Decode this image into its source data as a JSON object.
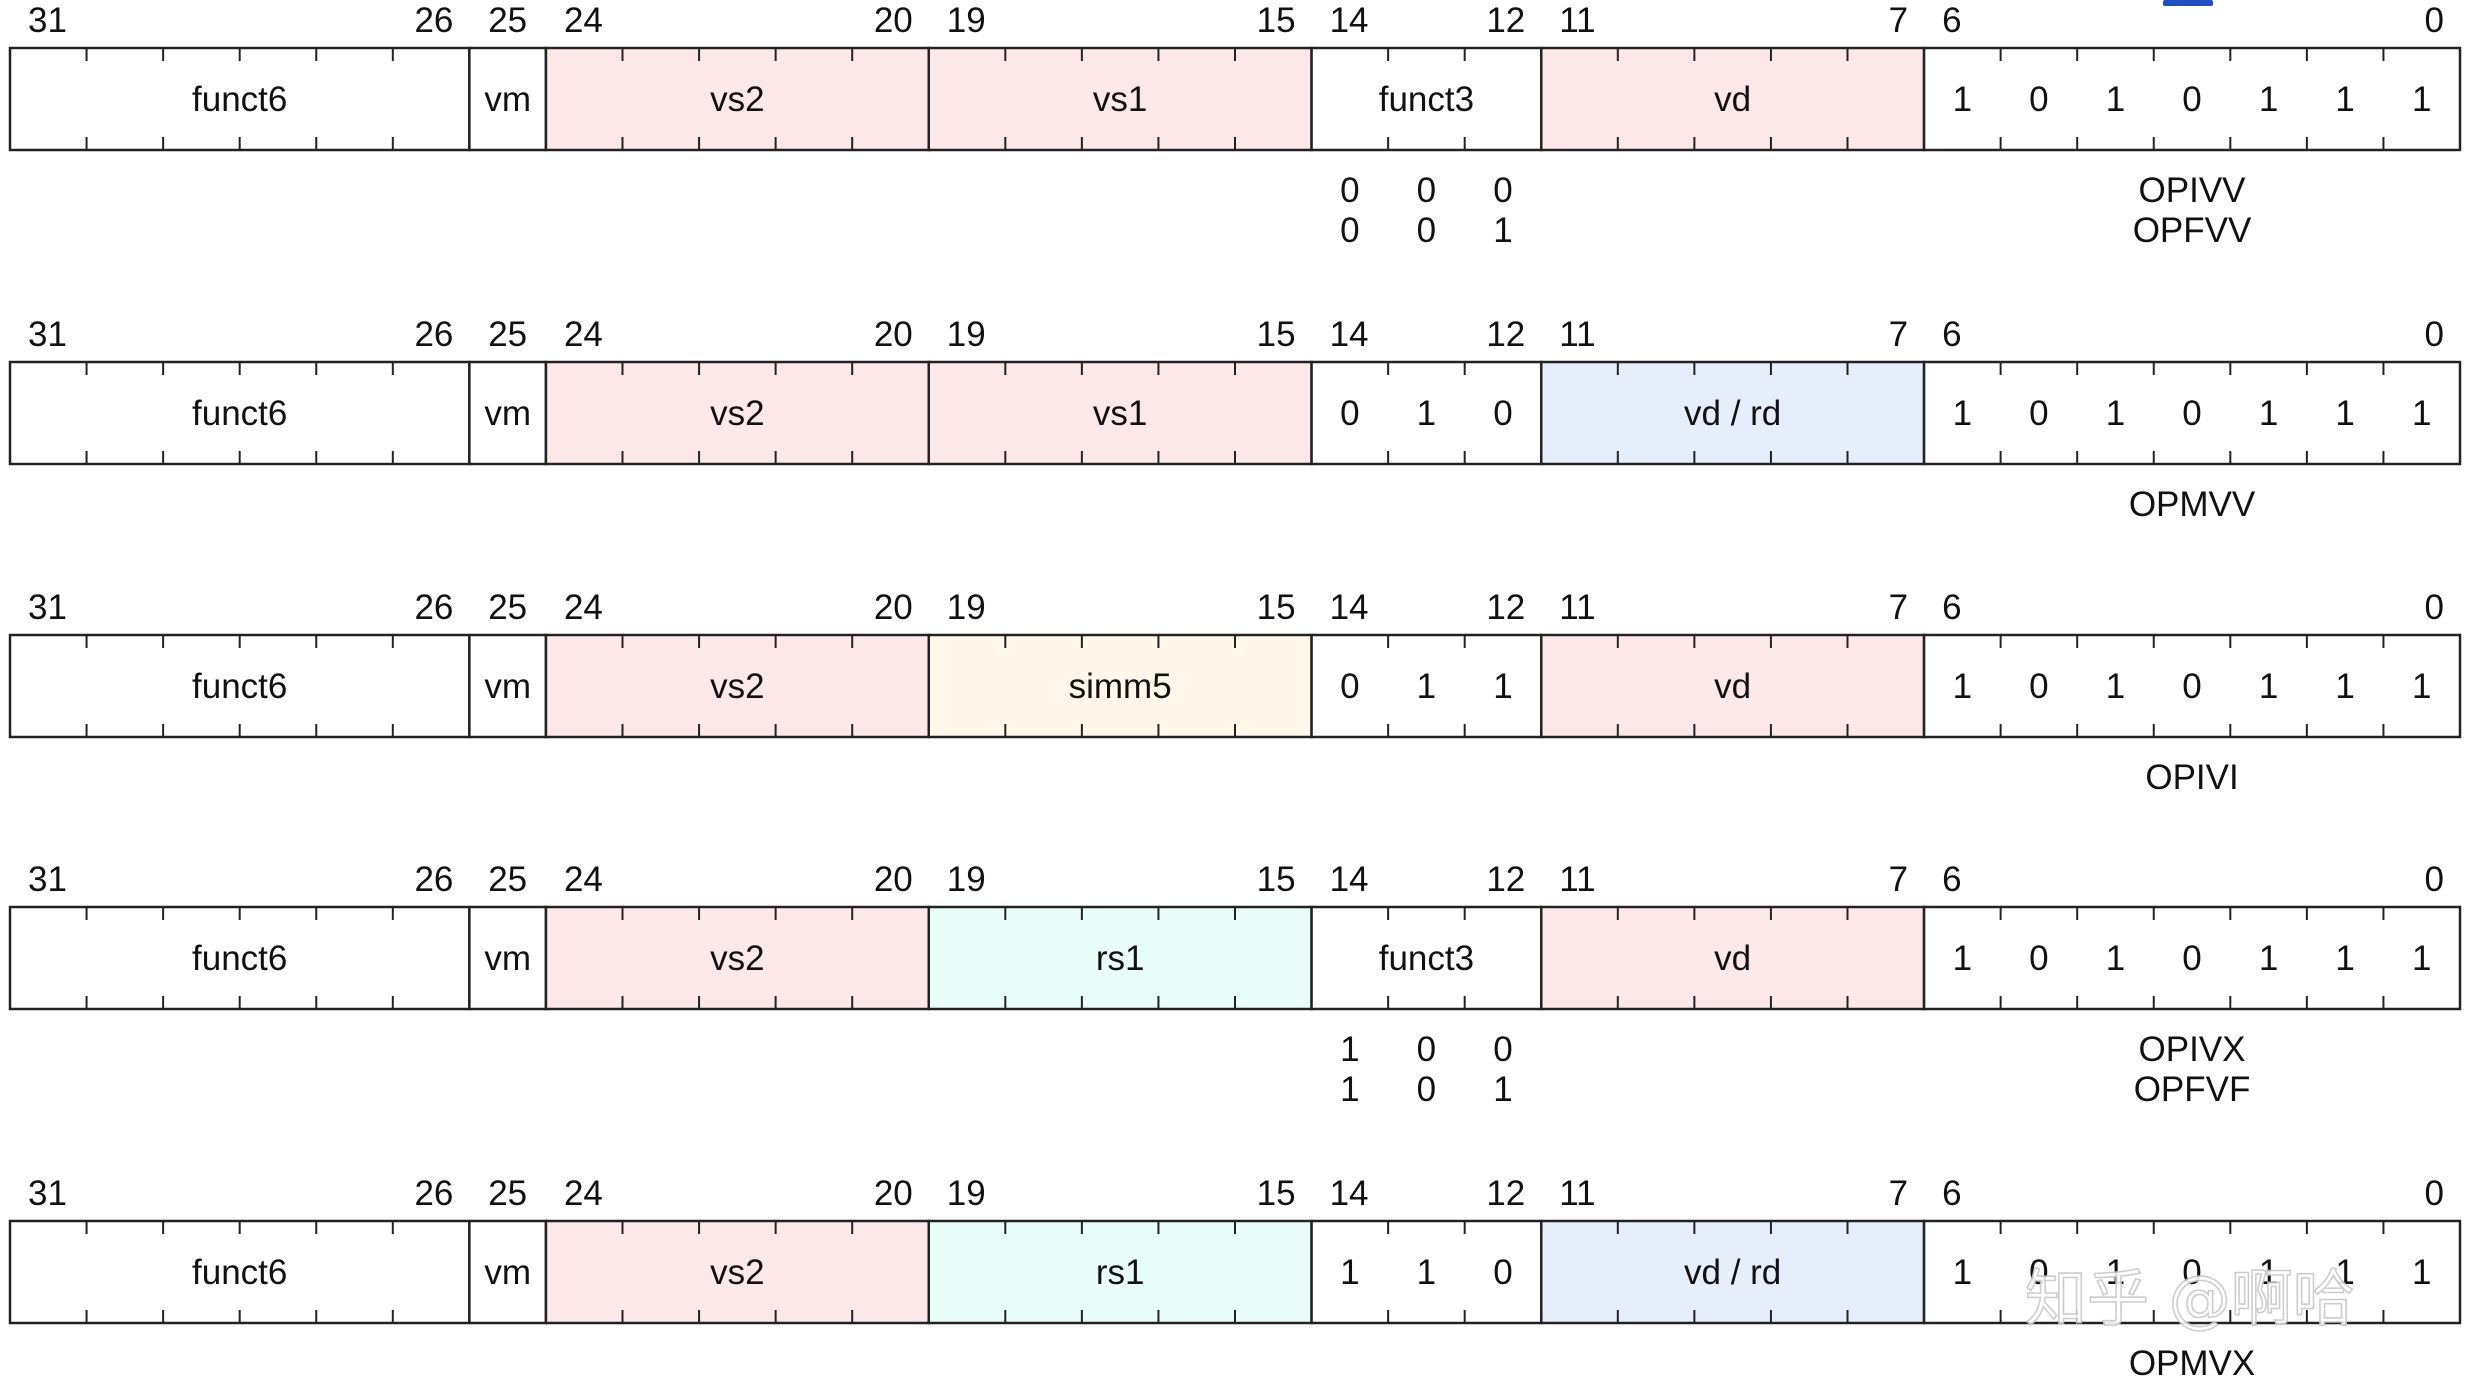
{
  "colors": {
    "vector_reg": "#fce8e8",
    "scalar_dest": "#e6eefc",
    "immediate": "#fef7ea",
    "scalar_src": "#e8fcf8",
    "plain": "#ffffff",
    "line": "#222222",
    "logo": "#1f4fc0"
  },
  "bit_positions": [
    "31",
    "26",
    "25",
    "24",
    "20",
    "19",
    "15",
    "14",
    "12",
    "11",
    "7",
    "6",
    "0"
  ],
  "formats": [
    {
      "fields": [
        {
          "label": "funct6",
          "kind": "plain"
        },
        {
          "label": "vm",
          "kind": "plain"
        },
        {
          "label": "vs2",
          "kind": "vector_reg"
        },
        {
          "label": "vs1",
          "kind": "vector_reg"
        },
        {
          "label": "funct3",
          "kind": "plain"
        },
        {
          "label": "vd",
          "kind": "vector_reg"
        }
      ],
      "opcode_bits": [
        "1",
        "0",
        "1",
        "0",
        "1",
        "1",
        "1"
      ],
      "funct3_rows": [
        [
          "0",
          "0",
          "0"
        ],
        [
          "0",
          "0",
          "1"
        ]
      ],
      "categories": [
        "OPIVV",
        "OPFVV"
      ]
    },
    {
      "fields": [
        {
          "label": "funct6",
          "kind": "plain"
        },
        {
          "label": "vm",
          "kind": "plain"
        },
        {
          "label": "vs2",
          "kind": "vector_reg"
        },
        {
          "label": "vs1",
          "kind": "vector_reg"
        },
        {
          "bits": [
            "0",
            "1",
            "0"
          ],
          "kind": "plain"
        },
        {
          "label": "vd / rd",
          "kind": "scalar_dest"
        }
      ],
      "opcode_bits": [
        "1",
        "0",
        "1",
        "0",
        "1",
        "1",
        "1"
      ],
      "funct3_rows": [],
      "categories": [
        "OPMVV"
      ]
    },
    {
      "fields": [
        {
          "label": "funct6",
          "kind": "plain"
        },
        {
          "label": "vm",
          "kind": "plain"
        },
        {
          "label": "vs2",
          "kind": "vector_reg"
        },
        {
          "label": "simm5",
          "kind": "immediate"
        },
        {
          "bits": [
            "0",
            "1",
            "1"
          ],
          "kind": "plain"
        },
        {
          "label": "vd",
          "kind": "vector_reg"
        }
      ],
      "opcode_bits": [
        "1",
        "0",
        "1",
        "0",
        "1",
        "1",
        "1"
      ],
      "funct3_rows": [],
      "categories": [
        "OPIVI"
      ]
    },
    {
      "fields": [
        {
          "label": "funct6",
          "kind": "plain"
        },
        {
          "label": "vm",
          "kind": "plain"
        },
        {
          "label": "vs2",
          "kind": "vector_reg"
        },
        {
          "label": "rs1",
          "kind": "scalar_src"
        },
        {
          "label": "funct3",
          "kind": "plain"
        },
        {
          "label": "vd",
          "kind": "vector_reg"
        }
      ],
      "opcode_bits": [
        "1",
        "0",
        "1",
        "0",
        "1",
        "1",
        "1"
      ],
      "funct3_rows": [
        [
          "1",
          "0",
          "0"
        ],
        [
          "1",
          "0",
          "1"
        ]
      ],
      "categories": [
        "OPIVX",
        "OPFVF"
      ]
    },
    {
      "fields": [
        {
          "label": "funct6",
          "kind": "plain"
        },
        {
          "label": "vm",
          "kind": "plain"
        },
        {
          "label": "vs2",
          "kind": "vector_reg"
        },
        {
          "label": "rs1",
          "kind": "scalar_src"
        },
        {
          "bits": [
            "1",
            "1",
            "0"
          ],
          "kind": "plain"
        },
        {
          "label": "vd / rd",
          "kind": "scalar_dest"
        }
      ],
      "opcode_bits": [
        "1",
        "0",
        "1",
        "0",
        "1",
        "1",
        "1"
      ],
      "funct3_rows": [],
      "categories": [
        "OPMVX"
      ]
    }
  ],
  "watermark": "知乎 @啊哈"
}
